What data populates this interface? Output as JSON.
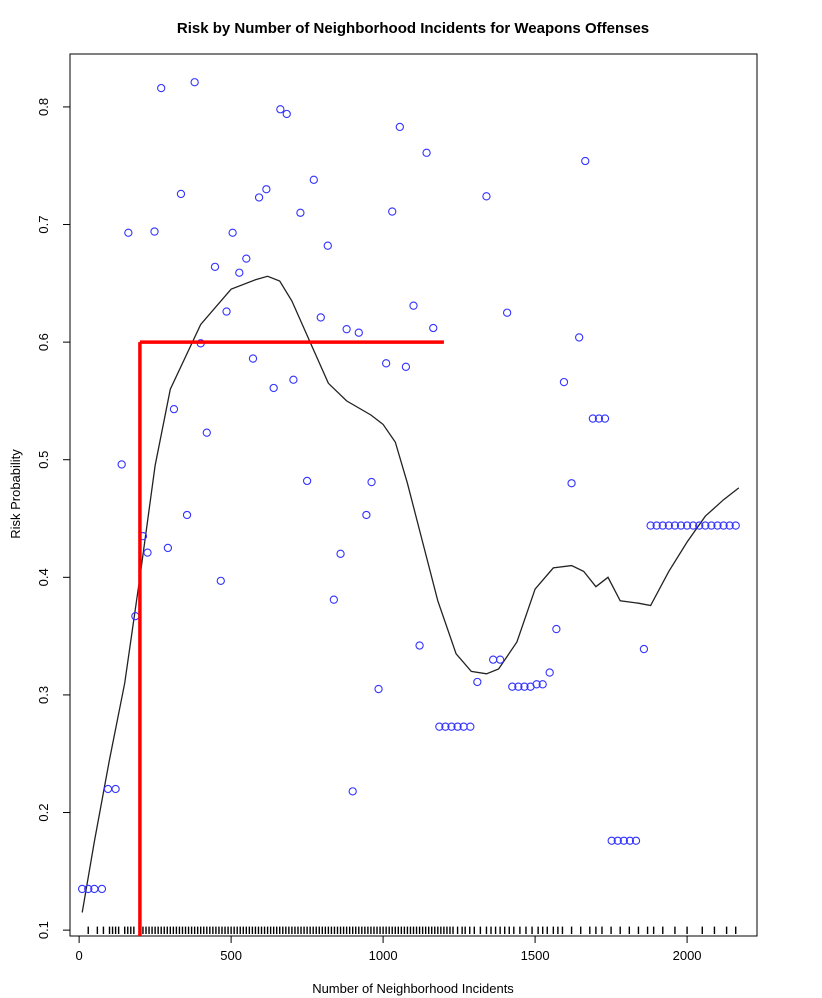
{
  "chart_data": {
    "type": "scatter",
    "title": "Risk by Number of Neighborhood Incidents for Weapons Offenses",
    "xlabel": "Number of Neighborhood Incidents",
    "ylabel": "Risk Probability",
    "xlim": [
      -30,
      2230
    ],
    "ylim": [
      0.095,
      0.845
    ],
    "xticks": [
      0,
      500,
      1000,
      1500,
      2000
    ],
    "yticks": [
      0.1,
      0.2,
      0.3,
      0.4,
      0.5,
      0.6,
      0.7,
      0.8
    ],
    "ytick_labels": [
      "0.1",
      "0.2",
      "0.3",
      "0.4",
      "0.5",
      "0.6",
      "0.7",
      "0.8"
    ],
    "grid": false,
    "points_color": "#3333ff",
    "points": [
      [
        10,
        0.135
      ],
      [
        30,
        0.135
      ],
      [
        50,
        0.135
      ],
      [
        75,
        0.135
      ],
      [
        95,
        0.22
      ],
      [
        120,
        0.22
      ],
      [
        140,
        0.496
      ],
      [
        162,
        0.693
      ],
      [
        185,
        0.367
      ],
      [
        210,
        0.435
      ],
      [
        225,
        0.421
      ],
      [
        248,
        0.694
      ],
      [
        270,
        0.816
      ],
      [
        292,
        0.425
      ],
      [
        312,
        0.543
      ],
      [
        335,
        0.726
      ],
      [
        355,
        0.453
      ],
      [
        380,
        0.821
      ],
      [
        400,
        0.599
      ],
      [
        420,
        0.523
      ],
      [
        447,
        0.664
      ],
      [
        466,
        0.397
      ],
      [
        485,
        0.626
      ],
      [
        505,
        0.693
      ],
      [
        527,
        0.659
      ],
      [
        550,
        0.671
      ],
      [
        572,
        0.586
      ],
      [
        592,
        0.723
      ],
      [
        616,
        0.73
      ],
      [
        640,
        0.561
      ],
      [
        662,
        0.798
      ],
      [
        683,
        0.794
      ],
      [
        705,
        0.568
      ],
      [
        728,
        0.71
      ],
      [
        750,
        0.482
      ],
      [
        772,
        0.738
      ],
      [
        795,
        0.621
      ],
      [
        818,
        0.682
      ],
      [
        838,
        0.381
      ],
      [
        860,
        0.42
      ],
      [
        880,
        0.611
      ],
      [
        900,
        0.218
      ],
      [
        920,
        0.608
      ],
      [
        945,
        0.453
      ],
      [
        962,
        0.481
      ],
      [
        985,
        0.305
      ],
      [
        1010,
        0.582
      ],
      [
        1030,
        0.711
      ],
      [
        1055,
        0.783
      ],
      [
        1075,
        0.579
      ],
      [
        1100,
        0.631
      ],
      [
        1120,
        0.342
      ],
      [
        1143,
        0.761
      ],
      [
        1165,
        0.612
      ],
      [
        1185,
        0.273
      ],
      [
        1205,
        0.273
      ],
      [
        1225,
        0.273
      ],
      [
        1245,
        0.273
      ],
      [
        1265,
        0.273
      ],
      [
        1287,
        0.273
      ],
      [
        1310,
        0.311
      ],
      [
        1340,
        0.724
      ],
      [
        1362,
        0.33
      ],
      [
        1385,
        0.33
      ],
      [
        1408,
        0.625
      ],
      [
        1425,
        0.307
      ],
      [
        1445,
        0.307
      ],
      [
        1465,
        0.307
      ],
      [
        1485,
        0.307
      ],
      [
        1505,
        0.309
      ],
      [
        1525,
        0.309
      ],
      [
        1548,
        0.319
      ],
      [
        1570,
        0.356
      ],
      [
        1595,
        0.566
      ],
      [
        1620,
        0.48
      ],
      [
        1645,
        0.604
      ],
      [
        1665,
        0.754
      ],
      [
        1690,
        0.535
      ],
      [
        1710,
        0.535
      ],
      [
        1730,
        0.535
      ],
      [
        1752,
        0.176
      ],
      [
        1772,
        0.176
      ],
      [
        1792,
        0.176
      ],
      [
        1812,
        0.176
      ],
      [
        1832,
        0.176
      ],
      [
        1858,
        0.339
      ],
      [
        1880,
        0.444
      ],
      [
        1900,
        0.444
      ],
      [
        1920,
        0.444
      ],
      [
        1940,
        0.444
      ],
      [
        1960,
        0.444
      ],
      [
        1980,
        0.444
      ],
      [
        2000,
        0.444
      ],
      [
        2020,
        0.444
      ],
      [
        2040,
        0.444
      ],
      [
        2060,
        0.444
      ],
      [
        2080,
        0.444
      ],
      [
        2100,
        0.444
      ],
      [
        2120,
        0.444
      ],
      [
        2140,
        0.444
      ],
      [
        2160,
        0.444
      ]
    ],
    "smooth_line": [
      [
        10,
        0.115
      ],
      [
        50,
        0.175
      ],
      [
        100,
        0.245
      ],
      [
        150,
        0.31
      ],
      [
        200,
        0.4
      ],
      [
        250,
        0.495
      ],
      [
        300,
        0.56
      ],
      [
        400,
        0.615
      ],
      [
        500,
        0.645
      ],
      [
        580,
        0.653
      ],
      [
        620,
        0.656
      ],
      [
        660,
        0.652
      ],
      [
        700,
        0.635
      ],
      [
        760,
        0.6
      ],
      [
        820,
        0.565
      ],
      [
        880,
        0.55
      ],
      [
        960,
        0.538
      ],
      [
        1000,
        0.53
      ],
      [
        1040,
        0.515
      ],
      [
        1080,
        0.48
      ],
      [
        1130,
        0.43
      ],
      [
        1180,
        0.38
      ],
      [
        1240,
        0.335
      ],
      [
        1290,
        0.32
      ],
      [
        1340,
        0.318
      ],
      [
        1380,
        0.322
      ],
      [
        1440,
        0.345
      ],
      [
        1500,
        0.39
      ],
      [
        1560,
        0.408
      ],
      [
        1620,
        0.41
      ],
      [
        1660,
        0.405
      ],
      [
        1700,
        0.392
      ],
      [
        1740,
        0.4
      ],
      [
        1780,
        0.38
      ],
      [
        1840,
        0.378
      ],
      [
        1880,
        0.376
      ],
      [
        1940,
        0.405
      ],
      [
        2000,
        0.43
      ],
      [
        2060,
        0.452
      ],
      [
        2120,
        0.466
      ],
      [
        2170,
        0.476
      ]
    ],
    "line_color": "#222222",
    "reference_line": {
      "color": "#ff0000",
      "x": 200,
      "y": 0.6,
      "x_end": 1200
    },
    "rug_color": "#000000",
    "rug": [
      30,
      60,
      80,
      100,
      110,
      120,
      130,
      150,
      160,
      170,
      180,
      200,
      210,
      220,
      230,
      240,
      250,
      260,
      270,
      280,
      290,
      300,
      310,
      320,
      330,
      340,
      350,
      360,
      370,
      380,
      390,
      400,
      410,
      420,
      430,
      440,
      450,
      460,
      470,
      480,
      490,
      500,
      510,
      520,
      530,
      540,
      550,
      560,
      570,
      580,
      590,
      600,
      610,
      620,
      630,
      640,
      650,
      660,
      670,
      680,
      690,
      700,
      710,
      720,
      730,
      740,
      750,
      760,
      770,
      780,
      790,
      800,
      810,
      820,
      830,
      840,
      850,
      860,
      870,
      880,
      890,
      900,
      910,
      920,
      930,
      940,
      950,
      960,
      970,
      980,
      990,
      1000,
      1010,
      1020,
      1030,
      1040,
      1050,
      1060,
      1070,
      1080,
      1090,
      1100,
      1110,
      1120,
      1130,
      1140,
      1150,
      1160,
      1170,
      1180,
      1190,
      1200,
      1210,
      1220,
      1230,
      1245,
      1260,
      1270,
      1285,
      1300,
      1320,
      1340,
      1355,
      1370,
      1385,
      1400,
      1415,
      1430,
      1450,
      1470,
      1490,
      1510,
      1525,
      1540,
      1560,
      1575,
      1590,
      1620,
      1650,
      1680,
      1700,
      1720,
      1750,
      1780,
      1810,
      1840,
      1870,
      1890,
      1920,
      1960,
      2000,
      2050,
      2090,
      2130,
      2160
    ]
  }
}
